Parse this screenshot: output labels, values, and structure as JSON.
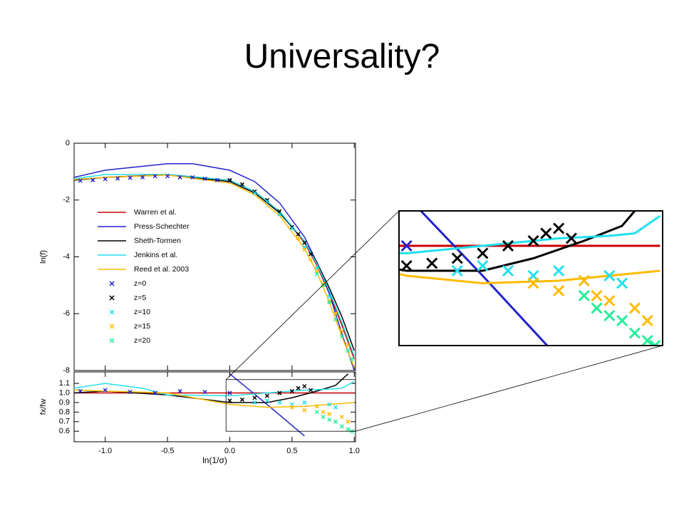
{
  "title": "Universality?",
  "chart_data": [
    {
      "type": "line",
      "ylabel": "ln(f)",
      "xlim": [
        -1.25,
        1.01
      ],
      "ylim": [
        -8,
        0
      ],
      "yticks": [
        0,
        -2,
        -4,
        -6,
        -8
      ],
      "series": [
        {
          "name": "Warren et al.",
          "color": "#cc0000",
          "mode": "line",
          "x": [
            -1.25,
            -1.0,
            -0.5,
            0,
            0.2,
            0.4,
            0.6,
            0.7,
            0.8,
            0.9,
            1.0
          ],
          "values": [
            -1.3,
            -1.2,
            -1.1,
            -1.3,
            -1.7,
            -2.4,
            -3.5,
            -4.3,
            -5.3,
            -6.4,
            -7.6
          ]
        },
        {
          "name": "Press-Schechter",
          "color": "#2222cc",
          "mode": "line",
          "x": [
            -1.25,
            -1.0,
            -0.5,
            -0.3,
            0,
            0.2,
            0.4,
            0.6,
            0.7,
            0.8,
            0.9,
            1.0
          ],
          "values": [
            -1.2,
            -0.95,
            -0.72,
            -0.72,
            -0.95,
            -1.35,
            -2.1,
            -3.3,
            -4.2,
            -5.3,
            -6.7,
            -8.0
          ]
        },
        {
          "name": "Sheth-Tormen",
          "color": "#000000",
          "mode": "line",
          "x": [
            -1.25,
            -1.0,
            -0.5,
            0,
            0.2,
            0.4,
            0.6,
            0.7,
            0.8,
            0.9,
            1.0
          ],
          "values": [
            -1.3,
            -1.2,
            -1.12,
            -1.35,
            -1.75,
            -2.45,
            -3.45,
            -4.2,
            -5.1,
            -6.1,
            -7.3
          ]
        },
        {
          "name": "Jenkins et al.",
          "color": "#22e0ee",
          "mode": "line",
          "x": [
            -1.25,
            -1.0,
            -0.5,
            0,
            0.2,
            0.4,
            0.6,
            0.7,
            0.8,
            0.9,
            1.0
          ],
          "values": [
            -1.25,
            -1.1,
            -1.1,
            -1.3,
            -1.7,
            -2.4,
            -3.45,
            -4.25,
            -5.2,
            -6.3,
            -7.5
          ]
        },
        {
          "name": "Reed et al. 2003",
          "color": "#ffbb00",
          "mode": "line",
          "x": [
            -1.25,
            -1.0,
            -0.5,
            0,
            0.2,
            0.4,
            0.6,
            0.7,
            0.8,
            0.9,
            1.0
          ],
          "values": [
            -1.28,
            -1.2,
            -1.12,
            -1.4,
            -1.82,
            -2.55,
            -3.7,
            -4.55,
            -5.6,
            -6.8,
            -7.9
          ]
        },
        {
          "name": "z=0",
          "color": "#2222cc",
          "mode": "markers",
          "x": [
            -1.2,
            -1.1,
            -1.0,
            -0.9,
            -0.8,
            -0.7,
            -0.6,
            -0.5,
            -0.4,
            -0.3,
            -0.2,
            -0.1,
            0.0
          ],
          "values": [
            -1.32,
            -1.3,
            -1.26,
            -1.24,
            -1.22,
            -1.2,
            -1.16,
            -1.16,
            -1.2,
            -1.2,
            -1.25,
            -1.3,
            -1.32
          ]
        },
        {
          "name": "z=5",
          "color": "#000000",
          "mode": "markers",
          "x": [
            0.0,
            0.1,
            0.2,
            0.3,
            0.4,
            0.5,
            0.55,
            0.6,
            0.65
          ],
          "values": [
            -1.3,
            -1.45,
            -1.7,
            -2.0,
            -2.4,
            -2.95,
            -3.2,
            -3.5,
            -3.9
          ]
        },
        {
          "name": "z=10",
          "color": "#22e0ee",
          "mode": "markers",
          "x": [
            0.2,
            0.3,
            0.4,
            0.5,
            0.6,
            0.7,
            0.8,
            0.85,
            0.9
          ],
          "values": [
            -1.75,
            -2.05,
            -2.5,
            -3.0,
            -3.65,
            -4.4,
            -5.4,
            -6.0,
            -6.6
          ]
        },
        {
          "name": "z=15",
          "color": "#ffbb00",
          "mode": "markers",
          "x": [
            0.55,
            0.6,
            0.65,
            0.7,
            0.75,
            0.8,
            0.85,
            0.9,
            0.95
          ],
          "values": [
            -3.35,
            -3.75,
            -4.1,
            -4.5,
            -4.95,
            -5.55,
            -6.0,
            -6.6,
            -7.1
          ]
        },
        {
          "name": "z=20",
          "color": "#22ee99",
          "mode": "markers",
          "x": [
            0.7,
            0.75,
            0.8,
            0.85,
            0.9,
            0.95,
            0.98
          ],
          "values": [
            -4.6,
            -5.0,
            -5.6,
            -6.2,
            -6.8,
            -7.3,
            -7.6
          ]
        }
      ]
    },
    {
      "type": "line",
      "ylabel": "fx/fw",
      "xlabel": "ln(1/σ)",
      "xlim": [
        -1.25,
        1.01
      ],
      "ylim": [
        0.49,
        1.22
      ],
      "xticks": [
        {
          "value": -1.0,
          "label": "-1.0"
        },
        {
          "value": -0.5,
          "label": "-0.5"
        },
        {
          "value": 0.0,
          "label": "0.0"
        },
        {
          "value": 0.5,
          "label": "0.5"
        },
        {
          "value": 1.0,
          "label": "1.0"
        }
      ],
      "yticks": [
        1.1,
        {
          "value": 1.0,
          "label": "1.0"
        },
        0.9,
        0.8,
        0.7,
        0.6
      ],
      "zoom": {
        "xlim": [
          -0.03,
          1.01
        ],
        "ylim": [
          0.6,
          1.14
        ]
      },
      "series": [
        {
          "color": "#cc0000",
          "mode": "line",
          "x": [
            -1.25,
            1.0
          ],
          "values": [
            1.0,
            1.0
          ]
        },
        {
          "color": "#2222cc",
          "mode": "line",
          "x": [
            0.0,
            0.3,
            0.6
          ],
          "values": [
            1.2,
            0.88,
            0.55
          ]
        },
        {
          "color": "#000000",
          "mode": "line",
          "x": [
            -1.25,
            -1.0,
            -0.5,
            0,
            0.3,
            0.5,
            0.7,
            0.85,
            0.95
          ],
          "values": [
            1.0,
            1.02,
            0.98,
            0.9,
            0.9,
            0.95,
            1.02,
            1.08,
            1.2
          ]
        },
        {
          "color": "#22e0ee",
          "mode": "line",
          "x": [
            -1.25,
            -1.0,
            -0.7,
            -0.5,
            0,
            0.3,
            0.6,
            0.8,
            0.9,
            1.0
          ],
          "values": [
            1.05,
            1.1,
            1.05,
            0.98,
            0.97,
            1.0,
            1.03,
            1.04,
            1.05,
            1.12
          ]
        },
        {
          "color": "#ffbb00",
          "mode": "line",
          "x": [
            -1.25,
            -0.5,
            0,
            0.3,
            0.6,
            0.8,
            1.0
          ],
          "values": [
            1.03,
            1.0,
            0.88,
            0.85,
            0.86,
            0.88,
            0.9
          ]
        },
        {
          "color": "#2222cc",
          "mode": "markers",
          "x": [
            -1.2,
            -1.0,
            -0.8,
            -0.6,
            -0.4,
            -0.2,
            0.0
          ],
          "values": [
            1.02,
            1.03,
            1.01,
            1.0,
            1.02,
            1.01,
            1.0
          ]
        },
        {
          "color": "#000000",
          "mode": "markers",
          "x": [
            0.0,
            0.1,
            0.2,
            0.3,
            0.4,
            0.5,
            0.55,
            0.6,
            0.65
          ],
          "values": [
            0.92,
            0.93,
            0.95,
            0.97,
            1.0,
            1.02,
            1.05,
            1.07,
            1.03
          ]
        },
        {
          "color": "#22e0ee",
          "mode": "markers",
          "x": [
            0.2,
            0.3,
            0.4,
            0.5,
            0.6,
            0.7,
            0.8,
            0.85
          ],
          "values": [
            0.9,
            0.92,
            0.9,
            0.88,
            0.9,
            0.86,
            0.88,
            0.85
          ]
        },
        {
          "color": "#ffbb00",
          "mode": "markers",
          "x": [
            0.5,
            0.6,
            0.7,
            0.75,
            0.8,
            0.9,
            0.95
          ],
          "values": [
            0.85,
            0.82,
            0.86,
            0.8,
            0.78,
            0.75,
            0.7
          ]
        },
        {
          "color": "#22ee99",
          "mode": "markers",
          "x": [
            0.7,
            0.75,
            0.8,
            0.85,
            0.9,
            0.95,
            0.98
          ],
          "values": [
            0.8,
            0.75,
            0.72,
            0.7,
            0.65,
            0.62,
            0.6
          ]
        }
      ]
    }
  ]
}
